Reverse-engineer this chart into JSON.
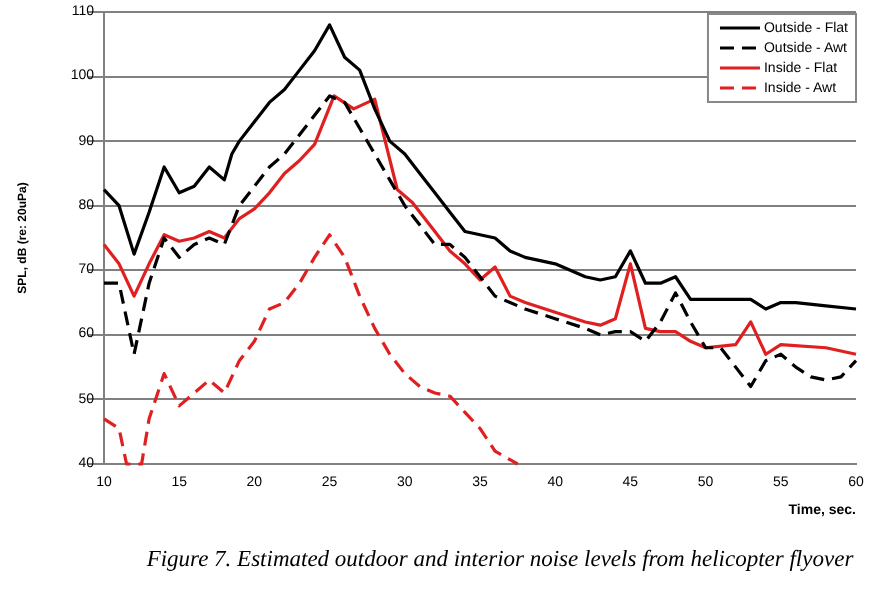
{
  "chart_data": {
    "type": "line",
    "xlabel": "Time, sec.",
    "ylabel": "SPL, dB (re: 20uPa)",
    "xlim": [
      10,
      60
    ],
    "xticks": [
      10,
      15,
      20,
      25,
      30,
      35,
      40,
      45,
      50,
      55,
      60
    ],
    "ylim": [
      40,
      110
    ],
    "yticks": [
      40,
      50,
      60,
      70,
      80,
      90,
      100,
      110
    ],
    "grid": "y",
    "legend": "top right",
    "marker": "none",
    "annotations": [
      "Figure 7.  Estimated outdoor and interior noise levels from helicopter flyover"
    ],
    "series": [
      {
        "name": "Outside - Flat",
        "color": "#000000",
        "line_style": "solid",
        "x": [
          10,
          11,
          12,
          13,
          14,
          15,
          16,
          17,
          18,
          18.5,
          19,
          20,
          21,
          22,
          23,
          24,
          25,
          26,
          27,
          28,
          29,
          30,
          31,
          32,
          33,
          34,
          35,
          36,
          37,
          38,
          40,
          42,
          43,
          44,
          45,
          46,
          47,
          48,
          49,
          50,
          51,
          52,
          53,
          54,
          55,
          56,
          58,
          60
        ],
        "values": [
          82.5,
          80,
          72.5,
          79,
          86,
          82,
          83,
          86,
          84,
          88,
          90,
          93,
          96,
          98,
          101,
          104,
          108,
          103,
          101,
          95,
          90,
          88,
          85,
          82,
          79,
          76,
          75.5,
          75,
          73,
          72,
          71,
          69,
          68.5,
          69,
          73,
          68,
          68,
          69,
          65.5,
          65.5,
          65.5,
          65.5,
          65.5,
          64,
          65,
          65,
          64.5,
          64
        ]
      },
      {
        "name": "Outside - Awt",
        "color": "#000000",
        "line_style": "dashed",
        "x": [
          10,
          11,
          12,
          13,
          14,
          15,
          16,
          17,
          18,
          19,
          20,
          21,
          22,
          23,
          24,
          25,
          26,
          27,
          28,
          29,
          30,
          31,
          32,
          33,
          34,
          35,
          36,
          37,
          38,
          40,
          42,
          43,
          44,
          45,
          46,
          47,
          48,
          49,
          50,
          51,
          52,
          53,
          54,
          55,
          56,
          57,
          58,
          59,
          60
        ],
        "values": [
          68,
          68,
          57,
          68,
          75,
          72,
          74,
          75,
          74,
          80,
          83,
          86,
          88,
          91,
          94,
          97,
          96,
          92,
          88,
          84,
          80,
          77,
          74,
          74,
          72,
          69,
          66,
          65,
          64,
          62.5,
          61,
          60,
          60.5,
          60.5,
          59,
          62,
          66.5,
          62,
          58,
          58,
          55,
          52,
          56,
          57,
          55,
          53.5,
          53,
          53.5,
          56
        ]
      },
      {
        "name": "Inside - Flat",
        "color": "#e02020",
        "line_style": "solid",
        "x": [
          10,
          11,
          12,
          13,
          14,
          15,
          16,
          17,
          18,
          19,
          20,
          21,
          22,
          23,
          24,
          25.3,
          26.6,
          28,
          29.5,
          30.5,
          32,
          33,
          34,
          35,
          36,
          37,
          38,
          40,
          42,
          43,
          44,
          45,
          46,
          47,
          48,
          49,
          50,
          52,
          53,
          54,
          55,
          58,
          60
        ],
        "values": [
          74,
          71,
          66,
          71,
          75.5,
          74.5,
          75,
          76,
          75,
          78,
          79.5,
          82,
          85,
          87,
          89.5,
          97,
          95,
          96.5,
          82.5,
          80.5,
          76,
          73,
          71,
          68.5,
          70.5,
          66,
          65,
          63.5,
          62,
          61.5,
          62.5,
          71,
          61,
          60.5,
          60.5,
          59,
          58,
          58.5,
          62,
          57,
          58.5,
          58,
          57
        ]
      },
      {
        "name": "Inside - Awt",
        "color": "#e02020",
        "line_style": "dashed",
        "x": [
          10,
          11,
          11.5,
          12.5,
          13,
          14,
          15,
          16,
          17,
          18,
          19,
          20,
          21,
          22,
          23,
          24,
          25,
          26,
          27,
          28,
          29,
          30,
          31,
          32,
          33,
          34,
          35,
          36,
          37.5
        ],
        "values": [
          47,
          45.5,
          40,
          40,
          47,
          54,
          49,
          51,
          53,
          51,
          56,
          59,
          64,
          65,
          68,
          72,
          75.5,
          72,
          66,
          61,
          57,
          54,
          52,
          51,
          50.5,
          48,
          45.5,
          42,
          40
        ]
      }
    ]
  }
}
